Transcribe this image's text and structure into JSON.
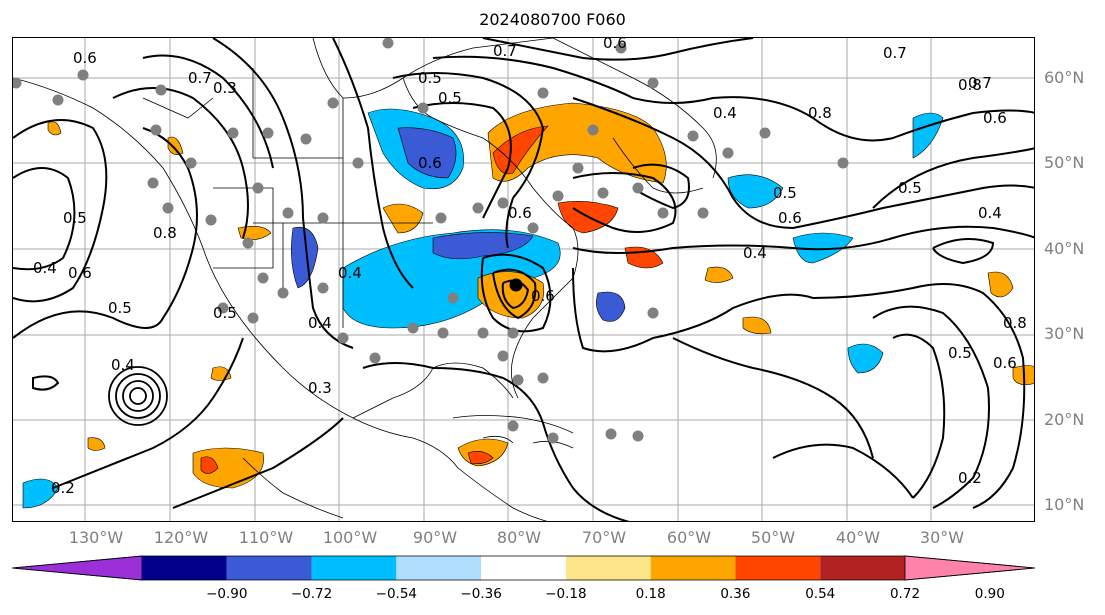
{
  "title": "2024080700 F060",
  "lat_labels": [
    "60°N",
    "50°N",
    "40°N",
    "30°N",
    "20°N",
    "10°N"
  ],
  "lon_labels": [
    "130°W",
    "120°W",
    "110°W",
    "100°W",
    "90°W",
    "80°W",
    "70°W",
    "60°W",
    "50°W",
    "40°W",
    "30°W"
  ],
  "colorbar": {
    "ticks": [
      "−0.90",
      "−0.72",
      "−0.54",
      "−0.36",
      "−0.18",
      "0.18",
      "0.36",
      "0.54",
      "0.72",
      "0.90"
    ],
    "colors": [
      "#9b30d9",
      "#00008b",
      "#3b5bd6",
      "#00bfff",
      "#afdffc",
      "#ffffff",
      "#fde68a",
      "#ffa500",
      "#ff4500",
      "#b22222",
      "#ff82ab"
    ]
  },
  "contour_labels": [
    "0.6",
    "0.6",
    "0.7",
    "0.7",
    "0.8",
    "0.6",
    "0.5",
    "0.4",
    "0.8",
    "0.5",
    "0.6",
    "0.5",
    "0.4",
    "0.4",
    "0.7",
    "0.5",
    "0.5",
    "0.6",
    "0.4",
    "0.8",
    "0.5",
    "0.6",
    "0.2",
    "0.2",
    "0.4",
    "0.3",
    "0.4",
    "0.6",
    "0.6",
    "0.5",
    "0.3",
    "0.7",
    "0.6",
    "0.5",
    "0.4",
    "0.8"
  ]
}
